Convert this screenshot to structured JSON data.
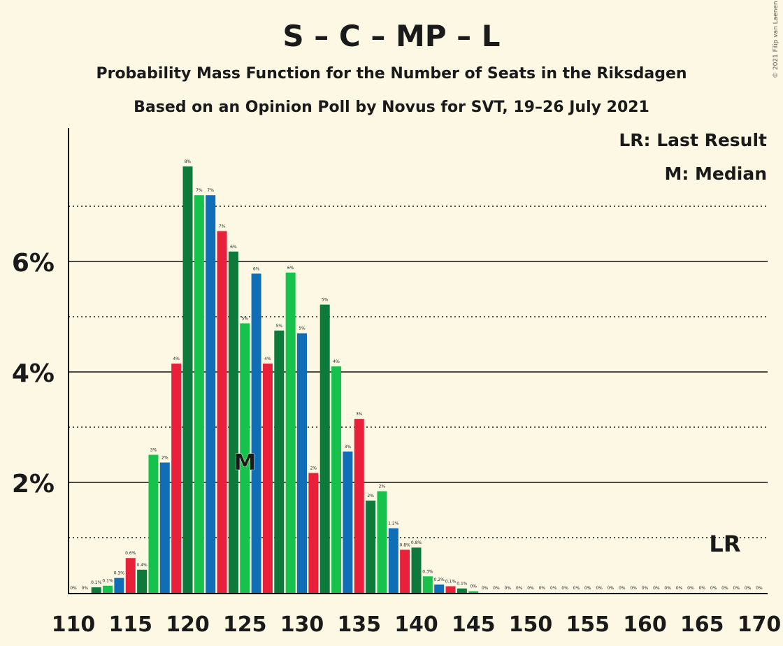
{
  "copyright": "© 2021 Filip van Laenen",
  "colors": {
    "background": "#fdf8e4",
    "red": "#e8203a",
    "dark_green": "#0d7a3c",
    "green": "#17c24c",
    "blue": "#0f6eb5"
  },
  "chart_data": {
    "type": "bar",
    "title": "S – C – MP – L",
    "subtitle1": "Probability Mass Function for the Number of Seats in the Riksdagen",
    "subtitle2": "Based on an Opinion Poll by Novus for SVT, 19–26 July 2021",
    "legend": [
      "LR: Last Result",
      "M: Median"
    ],
    "legend_position": "top-right",
    "median_marker": "M",
    "median_seat": 125,
    "last_result_marker": "LR",
    "last_result_seat": 167,
    "xlim": [
      110,
      170
    ],
    "ylim": [
      0,
      8.3
    ],
    "y_ticks": [
      {
        "value": 2,
        "label": "2%"
      },
      {
        "value": 4,
        "label": "4%"
      },
      {
        "value": 6,
        "label": "6%"
      }
    ],
    "y_dotted": [
      1,
      3,
      5,
      7
    ],
    "x_ticks": [
      110,
      115,
      120,
      125,
      130,
      135,
      140,
      145,
      150,
      155,
      160,
      165,
      170
    ],
    "bar_colors_cycle": [
      "blue",
      "red",
      "dark_green",
      "green"
    ],
    "bars": [
      {
        "seat": 110,
        "value": 0.0,
        "label": "0%"
      },
      {
        "seat": 111,
        "value": 0.0,
        "label": "0%"
      },
      {
        "seat": 112,
        "value": 0.1,
        "label": "0.1%"
      },
      {
        "seat": 113,
        "value": 0.13,
        "label": "0.1%"
      },
      {
        "seat": 114,
        "value": 0.27,
        "label": "0.3%"
      },
      {
        "seat": 115,
        "value": 0.63,
        "label": "0.6%"
      },
      {
        "seat": 116,
        "value": 0.42,
        "label": "0.4%"
      },
      {
        "seat": 117,
        "value": 2.5,
        "label": "3%"
      },
      {
        "seat": 118,
        "value": 2.36,
        "label": "2%"
      },
      {
        "seat": 119,
        "value": 4.15,
        "label": "4%"
      },
      {
        "seat": 120,
        "value": 7.72,
        "label": "8%"
      },
      {
        "seat": 121,
        "value": 7.2,
        "label": "7%"
      },
      {
        "seat": 122,
        "value": 7.2,
        "label": "7%"
      },
      {
        "seat": 123,
        "value": 6.55,
        "label": "7%"
      },
      {
        "seat": 124,
        "value": 6.18,
        "label": "6%"
      },
      {
        "seat": 125,
        "value": 4.88,
        "label": "5%"
      },
      {
        "seat": 126,
        "value": 5.78,
        "label": "6%"
      },
      {
        "seat": 127,
        "value": 4.15,
        "label": "4%"
      },
      {
        "seat": 128,
        "value": 4.75,
        "label": "5%"
      },
      {
        "seat": 129,
        "value": 5.8,
        "label": "6%"
      },
      {
        "seat": 130,
        "value": 4.7,
        "label": "5%"
      },
      {
        "seat": 131,
        "value": 2.17,
        "label": "2%"
      },
      {
        "seat": 132,
        "value": 5.22,
        "label": "5%"
      },
      {
        "seat": 133,
        "value": 4.1,
        "label": "4%"
      },
      {
        "seat": 134,
        "value": 2.56,
        "label": "3%"
      },
      {
        "seat": 135,
        "value": 3.15,
        "label": "3%"
      },
      {
        "seat": 136,
        "value": 1.67,
        "label": "2%"
      },
      {
        "seat": 137,
        "value": 1.84,
        "label": "2%"
      },
      {
        "seat": 138,
        "value": 1.17,
        "label": "1.2%"
      },
      {
        "seat": 139,
        "value": 0.78,
        "label": "0.8%"
      },
      {
        "seat": 140,
        "value": 0.82,
        "label": "0.8%"
      },
      {
        "seat": 141,
        "value": 0.3,
        "label": "0.3%"
      },
      {
        "seat": 142,
        "value": 0.15,
        "label": "0.2%"
      },
      {
        "seat": 143,
        "value": 0.12,
        "label": "0.1%"
      },
      {
        "seat": 144,
        "value": 0.08,
        "label": "0.1%"
      },
      {
        "seat": 145,
        "value": 0.03,
        "label": "0%"
      },
      {
        "seat": 146,
        "value": 0.0,
        "label": "0%"
      },
      {
        "seat": 147,
        "value": 0.0,
        "label": "0%"
      },
      {
        "seat": 148,
        "value": 0.0,
        "label": "0%"
      },
      {
        "seat": 149,
        "value": 0.0,
        "label": "0%"
      },
      {
        "seat": 150,
        "value": 0.0,
        "label": "0%"
      },
      {
        "seat": 151,
        "value": 0.0,
        "label": "0%"
      },
      {
        "seat": 152,
        "value": 0.0,
        "label": "0%"
      },
      {
        "seat": 153,
        "value": 0.0,
        "label": "0%"
      },
      {
        "seat": 154,
        "value": 0.0,
        "label": "0%"
      },
      {
        "seat": 155,
        "value": 0.0,
        "label": "0%"
      },
      {
        "seat": 156,
        "value": 0.0,
        "label": "0%"
      },
      {
        "seat": 157,
        "value": 0.0,
        "label": "0%"
      },
      {
        "seat": 158,
        "value": 0.0,
        "label": "0%"
      },
      {
        "seat": 159,
        "value": 0.0,
        "label": "0%"
      },
      {
        "seat": 160,
        "value": 0.0,
        "label": "0%"
      },
      {
        "seat": 161,
        "value": 0.0,
        "label": "0%"
      },
      {
        "seat": 162,
        "value": 0.0,
        "label": "0%"
      },
      {
        "seat": 163,
        "value": 0.0,
        "label": "0%"
      },
      {
        "seat": 164,
        "value": 0.0,
        "label": "0%"
      },
      {
        "seat": 165,
        "value": 0.0,
        "label": "0%"
      },
      {
        "seat": 166,
        "value": 0.0,
        "label": "0%"
      },
      {
        "seat": 167,
        "value": 0.0,
        "label": "0%"
      },
      {
        "seat": 168,
        "value": 0.0,
        "label": "0%"
      },
      {
        "seat": 169,
        "value": 0.0,
        "label": "0%"
      },
      {
        "seat": 170,
        "value": 0.0,
        "label": "0%"
      }
    ]
  }
}
